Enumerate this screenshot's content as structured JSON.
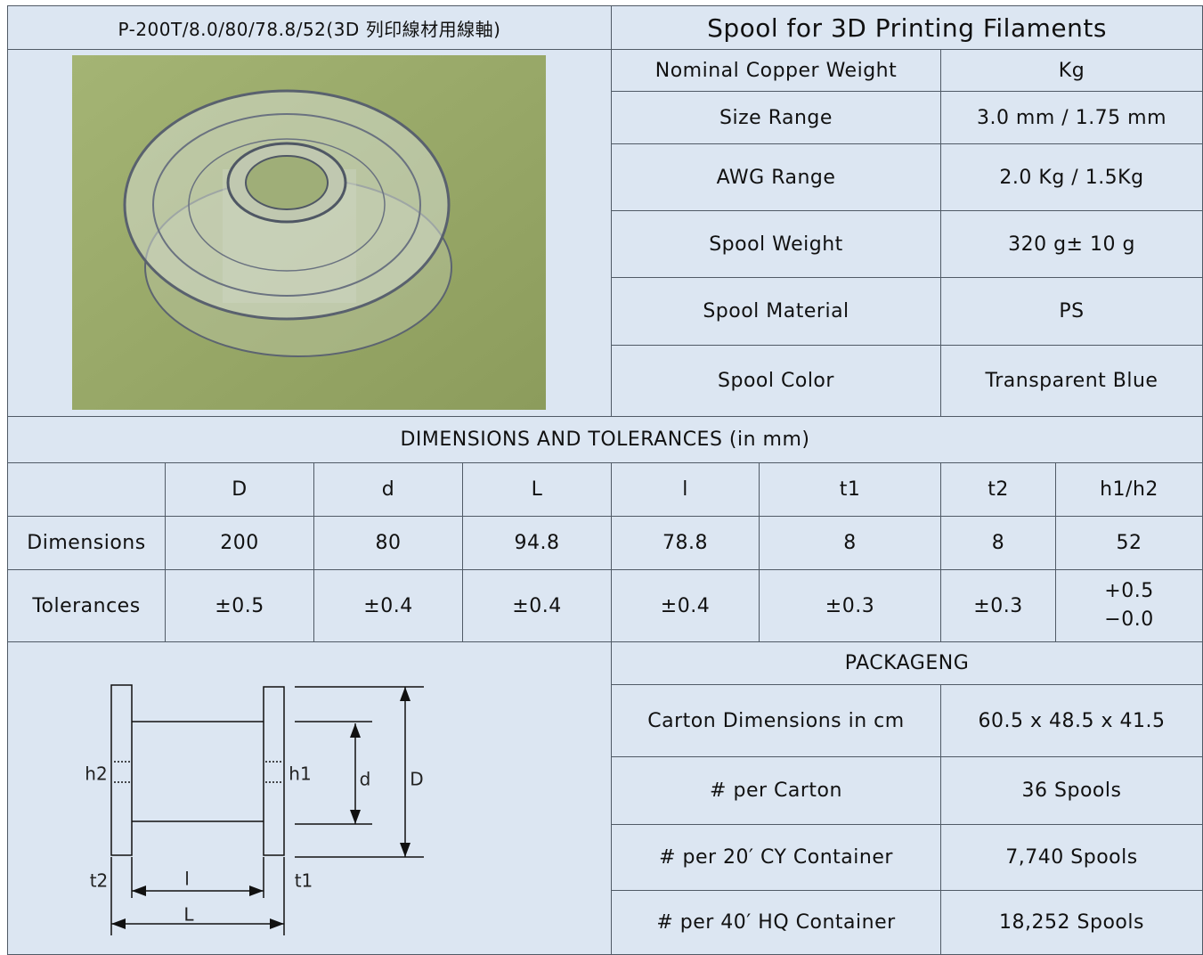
{
  "header": {
    "model": "P-200T/8.0/80/78.8/52(3D 列印線材用線軸)",
    "title": "Spool for 3D Printing Filaments"
  },
  "specs": [
    [
      "Nominal Copper Weight",
      "Kg"
    ],
    [
      "Size Range",
      "3.0 mm / 1.75 mm"
    ],
    [
      "AWG Range",
      "2.0 Kg / 1.5Kg"
    ],
    [
      "Spool Weight",
      "320 g± 10 g"
    ],
    [
      "Spool Material",
      "PS"
    ],
    [
      "Spool Color",
      "Transparent  Blue"
    ]
  ],
  "dimensions": {
    "title": "DIMENSIONS AND TOLERANCES (in mm)",
    "columns": [
      "D",
      "d",
      "L",
      "l",
      "t1",
      "t2",
      "h1/h2"
    ],
    "rows": [
      [
        "Dimensions",
        "200",
        "80",
        "94.8",
        "78.8",
        "8",
        "8",
        "52"
      ],
      [
        "Tolerances",
        "±0.5",
        "±0.4",
        "±0.4",
        "±0.4",
        "±0.3",
        "±0.3",
        [
          "+0.5",
          "−0.0"
        ]
      ]
    ]
  },
  "diagram": {
    "labels": {
      "h2": "h2",
      "h1": "h1",
      "d": "d",
      "D": "D",
      "t2": "t2",
      "l": "l",
      "t1": "t1",
      "L": "L"
    }
  },
  "packaging": {
    "title": "PACKAGENG",
    "rows": [
      [
        "Carton Dimensions in cm",
        "60.5 x 48.5 x 41.5"
      ],
      [
        "# per Carton",
        "36 Spools"
      ],
      [
        "# per 20′ CY Container",
        "7,740 Spools"
      ],
      [
        "# per 40′ HQ Container",
        "18,252 Spools"
      ]
    ]
  }
}
